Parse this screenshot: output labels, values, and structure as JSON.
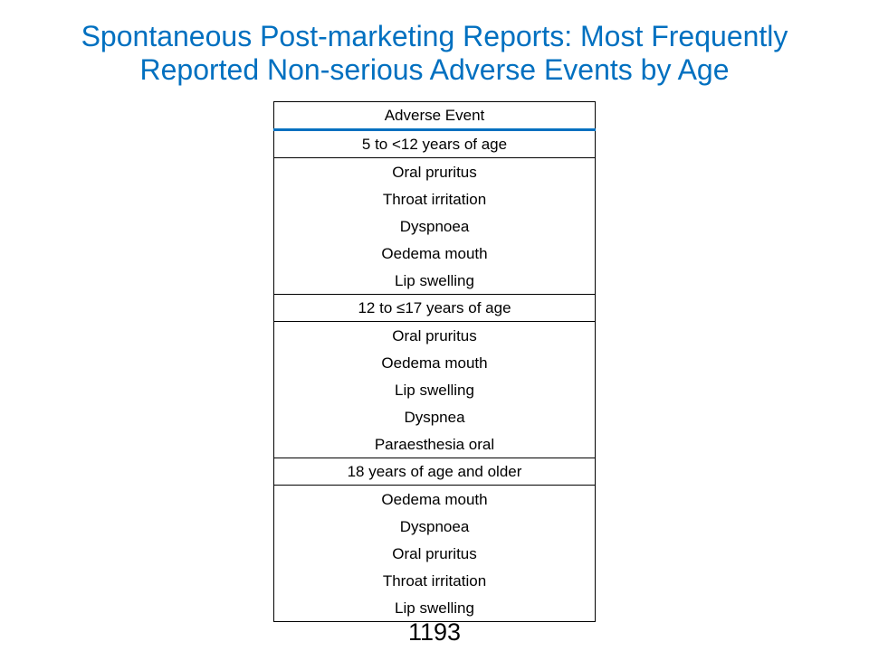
{
  "slide": {
    "title_line1": "Spontaneous Post-marketing Reports: Most Frequently",
    "title_line2": "Reported Non-serious Adverse Events by Age",
    "page_number": "1193"
  },
  "table": {
    "header": "Adverse Event",
    "groups": [
      {
        "label": "5 to <12 years of age",
        "events": [
          "Oral pruritus",
          "Throat irritation",
          "Dyspnoea",
          "Oedema mouth",
          "Lip swelling"
        ]
      },
      {
        "label": "12 to ≤17 years of age",
        "events": [
          "Oral pruritus",
          "Oedema mouth",
          "Lip swelling",
          "Dyspnea",
          "Paraesthesia oral"
        ]
      },
      {
        "label": "18 years of age and older",
        "events": [
          "Oedema mouth",
          "Dyspnoea",
          "Oral pruritus",
          "Throat irritation",
          "Lip swelling"
        ]
      }
    ]
  }
}
